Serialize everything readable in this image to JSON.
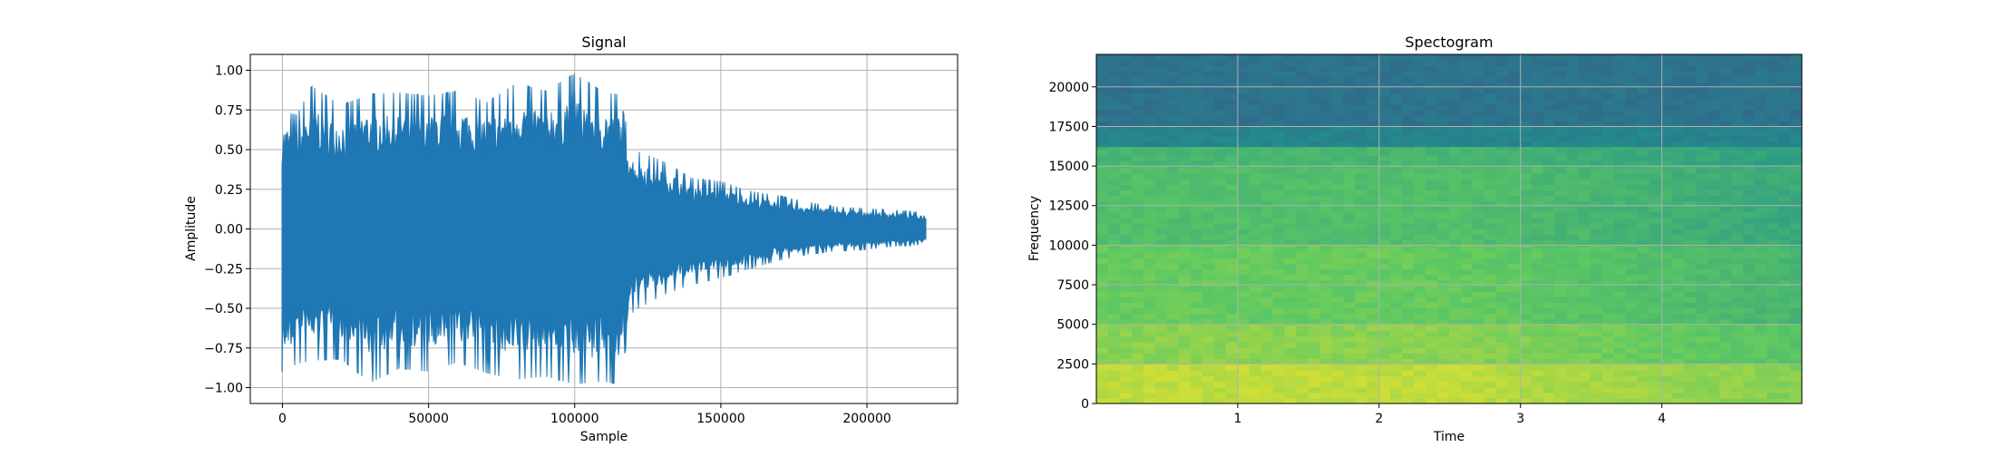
{
  "chart_data": [
    {
      "type": "line",
      "title": "Signal",
      "xlabel": "Sample",
      "ylabel": "Amplitude",
      "xlim": [
        -11000,
        231000
      ],
      "ylim": [
        -1.1,
        1.1
      ],
      "xticks": [
        0,
        50000,
        100000,
        150000,
        200000
      ],
      "xtick_labels": [
        "0",
        "50000",
        "100000",
        "150000",
        "200000"
      ],
      "yticks": [
        -1.0,
        -0.75,
        -0.5,
        -0.25,
        0.0,
        0.25,
        0.5,
        0.75,
        1.0
      ],
      "ytick_labels": [
        "−1.00",
        "−0.75",
        "−0.50",
        "−0.25",
        "0.00",
        "0.25",
        "0.50",
        "0.75",
        "1.00"
      ],
      "grid": true,
      "color": "#1f77b4",
      "series": [
        {
          "x": [
            0,
            5000,
            10000,
            20000,
            30000,
            40000,
            50000,
            60000,
            70000,
            80000,
            90000,
            100000,
            110000,
            115000,
            120000,
            130000,
            140000,
            150000,
            160000,
            170000,
            180000,
            190000,
            200000,
            210000,
            220000
          ],
          "max": [
            0.74,
            0.72,
            0.9,
            0.78,
            0.85,
            0.86,
            0.84,
            0.87,
            0.8,
            0.92,
            0.87,
            0.98,
            0.86,
            0.85,
            0.5,
            0.43,
            0.32,
            0.3,
            0.24,
            0.21,
            0.17,
            0.14,
            0.13,
            0.12,
            0.1
          ],
          "min": [
            -0.9,
            -0.85,
            -0.83,
            -0.82,
            -0.97,
            -0.88,
            -0.9,
            -0.84,
            -0.91,
            -0.95,
            -0.93,
            -0.98,
            -0.96,
            -0.98,
            -0.52,
            -0.42,
            -0.35,
            -0.31,
            -0.25,
            -0.2,
            -0.16,
            -0.14,
            -0.13,
            -0.11,
            -0.1
          ]
        }
      ]
    },
    {
      "type": "heatmap",
      "title": "Spectogram",
      "xlabel": "Time",
      "ylabel": "Frequency",
      "xlim": [
        0.0,
        4.99
      ],
      "ylim": [
        0,
        22050
      ],
      "xticks": [
        1,
        2,
        3,
        4
      ],
      "xtick_labels": [
        "1",
        "2",
        "3",
        "4"
      ],
      "yticks": [
        0,
        2500,
        5000,
        7500,
        10000,
        12500,
        15000,
        17500,
        20000
      ],
      "ytick_labels": [
        "0",
        "2500",
        "5000",
        "7500",
        "10000",
        "12500",
        "15000",
        "17500",
        "20000"
      ],
      "grid": true,
      "colormap": "viridis",
      "bands": [
        {
          "f0": 17500,
          "f1": 22050,
          "level": 0.38
        },
        {
          "f0": 16200,
          "f1": 17500,
          "level": 0.45
        },
        {
          "f0": 15000,
          "f1": 16200,
          "level": 0.66
        },
        {
          "f0": 10000,
          "f1": 15000,
          "level": 0.7
        },
        {
          "f0": 5000,
          "f1": 10000,
          "level": 0.76
        },
        {
          "f0": 2500,
          "f1": 5000,
          "level": 0.82
        },
        {
          "f0": 0,
          "f1": 2500,
          "level": 0.9
        }
      ]
    }
  ]
}
